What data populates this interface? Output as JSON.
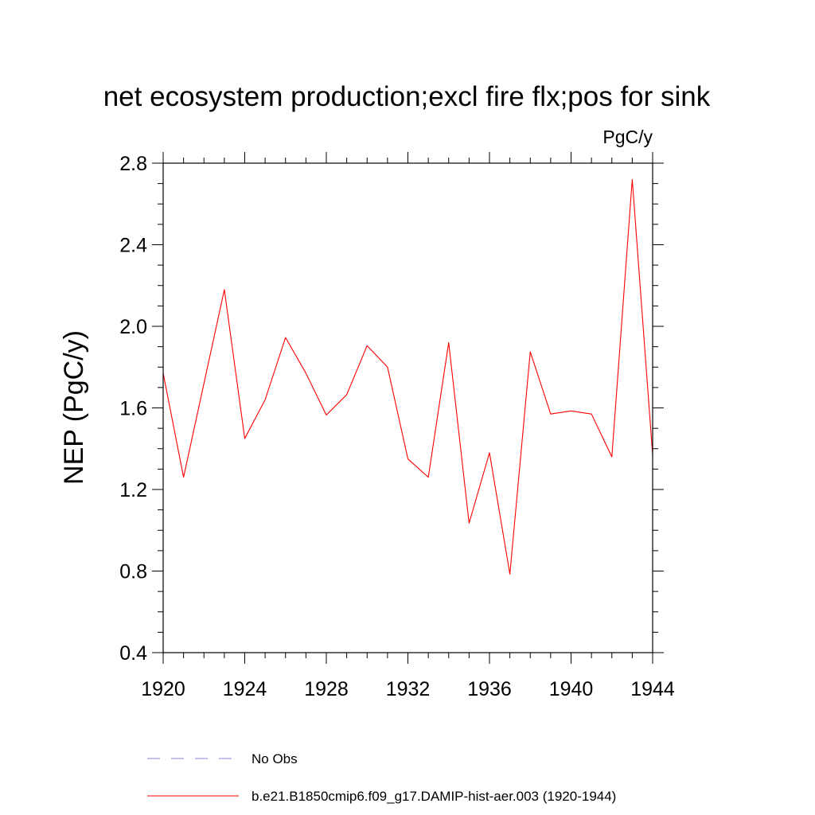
{
  "chart_data": {
    "type": "line",
    "title": "net ecosystem production;excl fire flx;pos for sink",
    "units": "PgC/y",
    "ylabel": "NEP  (PgC/y)",
    "xlabel": "",
    "xlim": [
      1920,
      1944
    ],
    "ylim": [
      0.4,
      2.8
    ],
    "x_ticks": [
      "1920",
      "1924",
      "1928",
      "1932",
      "1936",
      "1940",
      "1944"
    ],
    "y_ticks": [
      "0.4",
      "0.8",
      "1.2",
      "1.6",
      "2.0",
      "2.4",
      "2.8"
    ],
    "x": [
      1920,
      1921,
      1922,
      1923,
      1924,
      1925,
      1926,
      1927,
      1928,
      1929,
      1930,
      1931,
      1932,
      1933,
      1934,
      1935,
      1936,
      1937,
      1938,
      1939,
      1940,
      1941,
      1942,
      1943,
      1944
    ],
    "series": [
      {
        "name": "b.e21.B1850cmip6.f09_g17.DAMIP-hist-aer.003 (1920-1944)",
        "color": "#ff0000",
        "values": [
          1.77,
          1.26,
          1.72,
          2.18,
          1.45,
          1.64,
          1.945,
          1.77,
          1.565,
          1.665,
          1.905,
          1.8,
          1.35,
          1.26,
          1.92,
          1.035,
          1.38,
          0.785,
          1.875,
          1.57,
          1.585,
          1.57,
          1.36,
          2.72,
          1.37
        ]
      }
    ],
    "legend": [
      {
        "label": "No Obs",
        "color": "#8080d0",
        "style": "dashed"
      },
      {
        "label": "b.e21.B1850cmip6.f09_g17.DAMIP-hist-aer.003 (1920-1944)",
        "color": "#ff0000",
        "style": "solid"
      }
    ],
    "grid": false,
    "legend_position": "bottom"
  }
}
